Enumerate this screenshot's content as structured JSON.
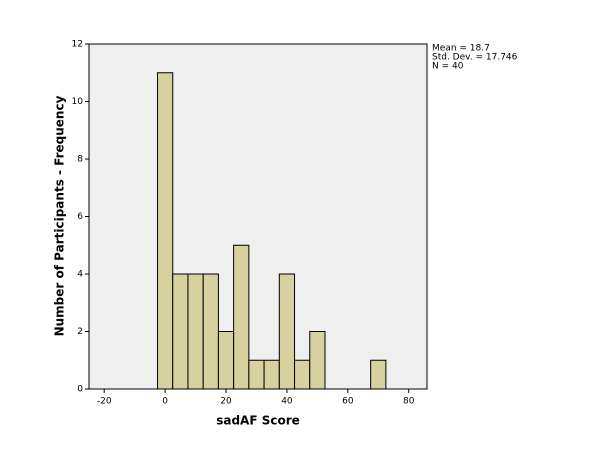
{
  "chart_data": {
    "type": "histogram",
    "xlabel": "sadAF Score",
    "ylabel": "Number of Participants - Frequency",
    "bins": [
      -2.5,
      2.5,
      7.5,
      12.5,
      17.5,
      22.5,
      27.5,
      32.5,
      37.5,
      42.5,
      47.5,
      52.5,
      57.5,
      62.5,
      67.5,
      72.5
    ],
    "values": [
      11,
      4,
      4,
      4,
      2,
      5,
      1,
      1,
      4,
      1,
      2,
      0,
      0,
      0,
      1
    ],
    "color": "#d6d19e",
    "xlim": [
      -25,
      86
    ],
    "xticks": [
      -20,
      0,
      20,
      40,
      60,
      80
    ],
    "ylim": [
      0,
      12
    ],
    "yticks": [
      0,
      2,
      4,
      6,
      8,
      10,
      12
    ],
    "stats": [
      "Mean = 18.7",
      "Std. Dev. = 17.746",
      "N = 40"
    ]
  }
}
